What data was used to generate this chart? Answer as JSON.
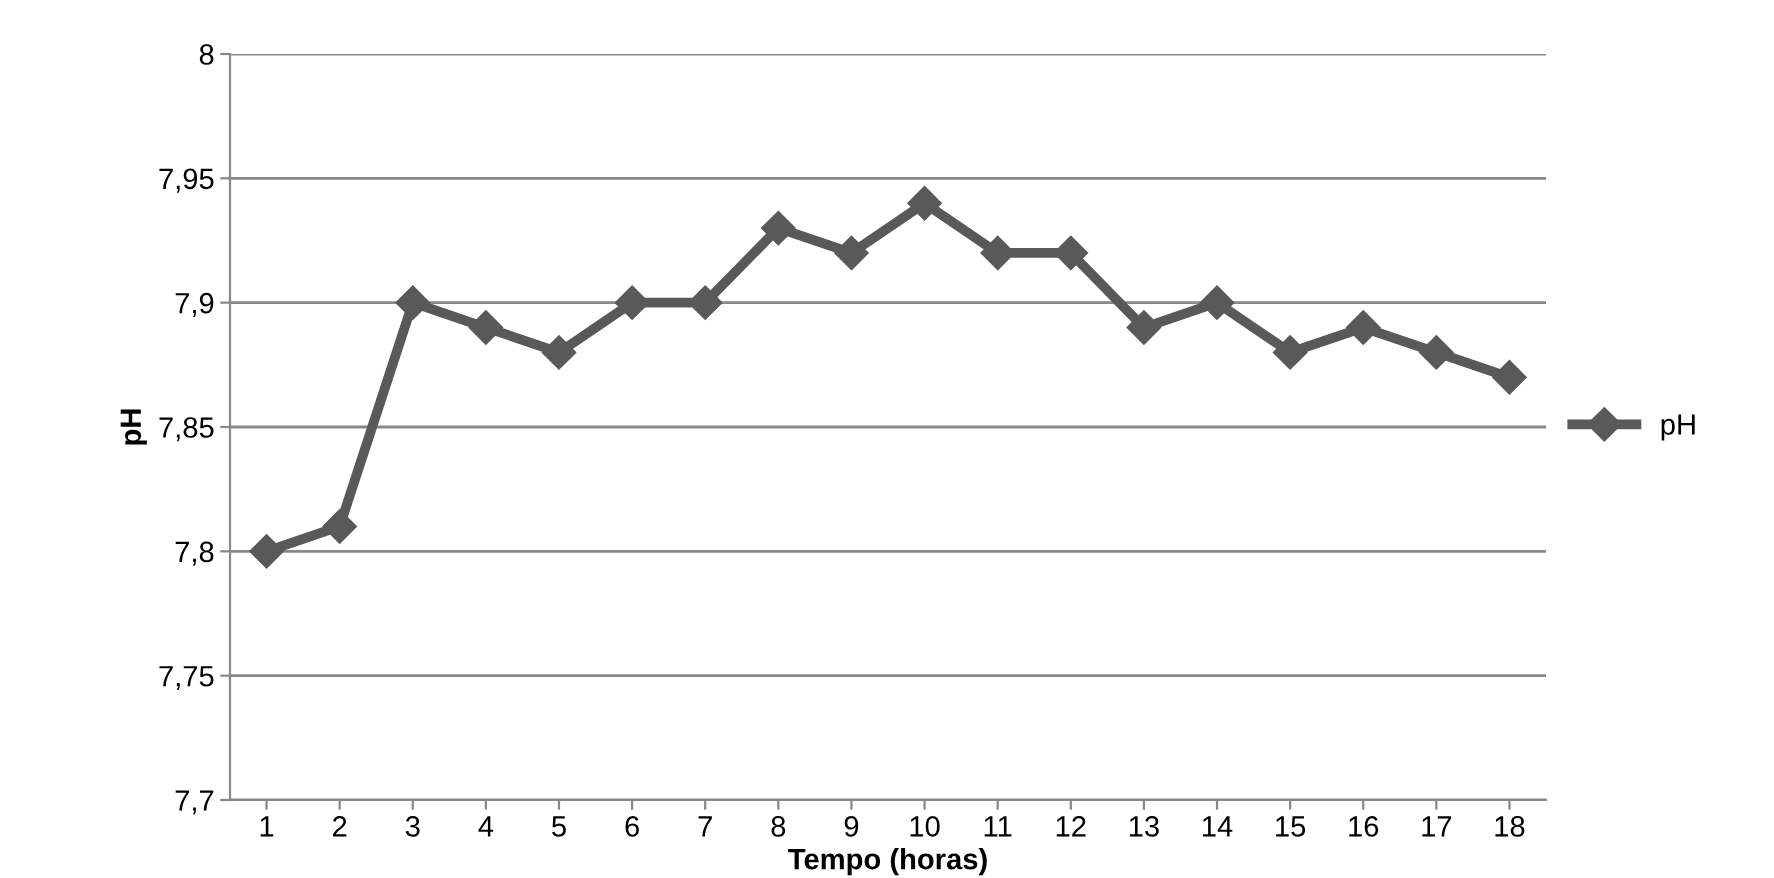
{
  "chart_data": {
    "type": "line",
    "xlabel": "Tempo (horas)",
    "ylabel": "pH",
    "categories": [
      "1",
      "2",
      "3",
      "4",
      "5",
      "6",
      "7",
      "8",
      "9",
      "10",
      "11",
      "12",
      "13",
      "14",
      "15",
      "16",
      "17",
      "18"
    ],
    "series": [
      {
        "name": "pH",
        "color": "#595959",
        "values": [
          7.8,
          7.81,
          7.9,
          7.89,
          7.88,
          7.9,
          7.9,
          7.93,
          7.92,
          7.94,
          7.92,
          7.92,
          7.89,
          7.9,
          7.88,
          7.89,
          7.88,
          7.87
        ]
      }
    ],
    "ylim": [
      7.7,
      8
    ],
    "yticks": [
      {
        "value": 7.7,
        "label": "7,7"
      },
      {
        "value": 7.75,
        "label": "7,75"
      },
      {
        "value": 7.8,
        "label": "7,8"
      },
      {
        "value": 7.85,
        "label": "7,85"
      },
      {
        "value": 7.9,
        "label": "7,9"
      },
      {
        "value": 7.95,
        "label": "7,95"
      },
      {
        "value": 8,
        "label": "8"
      }
    ],
    "grid": "y",
    "legend": "right",
    "marker": "diamond",
    "line_style": "solid"
  }
}
